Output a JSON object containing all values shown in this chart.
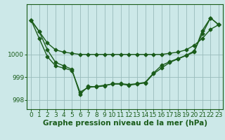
{
  "xlabel": "Graphe pression niveau de la mer (hPa)",
  "background_color": "#cce8e8",
  "plot_bg_color": "#cce8e8",
  "grid_color": "#99bbbb",
  "line_color": "#1a5c1a",
  "hours": [
    0,
    1,
    2,
    3,
    4,
    5,
    6,
    7,
    8,
    9,
    10,
    11,
    12,
    13,
    14,
    15,
    16,
    17,
    18,
    19,
    20,
    21,
    22,
    23
  ],
  "line1": [
    1001.5,
    1001.0,
    1000.5,
    1000.2,
    1000.1,
    1000.05,
    1000.0,
    1000.0,
    1000.0,
    1000.0,
    1000.0,
    1000.0,
    1000.0,
    1000.0,
    1000.0,
    1000.0,
    1000.0,
    1000.05,
    1000.1,
    1000.2,
    1000.4,
    1000.7,
    1001.1,
    1001.3
  ],
  "line2": [
    1001.5,
    1000.7,
    999.9,
    999.5,
    999.4,
    999.3,
    998.35,
    998.55,
    998.6,
    998.65,
    998.7,
    998.7,
    998.65,
    998.7,
    998.75,
    999.15,
    999.4,
    999.65,
    999.8,
    999.95,
    1000.1,
    1001.05,
    1001.6,
    1001.3
  ],
  "line3": [
    1001.5,
    1001.0,
    1000.2,
    999.65,
    999.5,
    999.35,
    998.25,
    998.6,
    998.58,
    998.62,
    998.72,
    998.72,
    998.68,
    998.72,
    998.78,
    999.18,
    999.52,
    999.68,
    999.82,
    999.96,
    1000.15,
    1000.9,
    1001.6,
    1001.3
  ],
  "ylim": [
    997.6,
    1002.2
  ],
  "yticks": [
    998,
    999,
    1000
  ],
  "xticks": [
    0,
    1,
    2,
    3,
    4,
    5,
    6,
    7,
    8,
    9,
    10,
    11,
    12,
    13,
    14,
    15,
    16,
    17,
    18,
    19,
    20,
    21,
    22,
    23
  ],
  "xlabel_fontsize": 7.5,
  "tick_fontsize": 6.5,
  "marker": "D",
  "markersize": 2.5,
  "linewidth": 1.0
}
